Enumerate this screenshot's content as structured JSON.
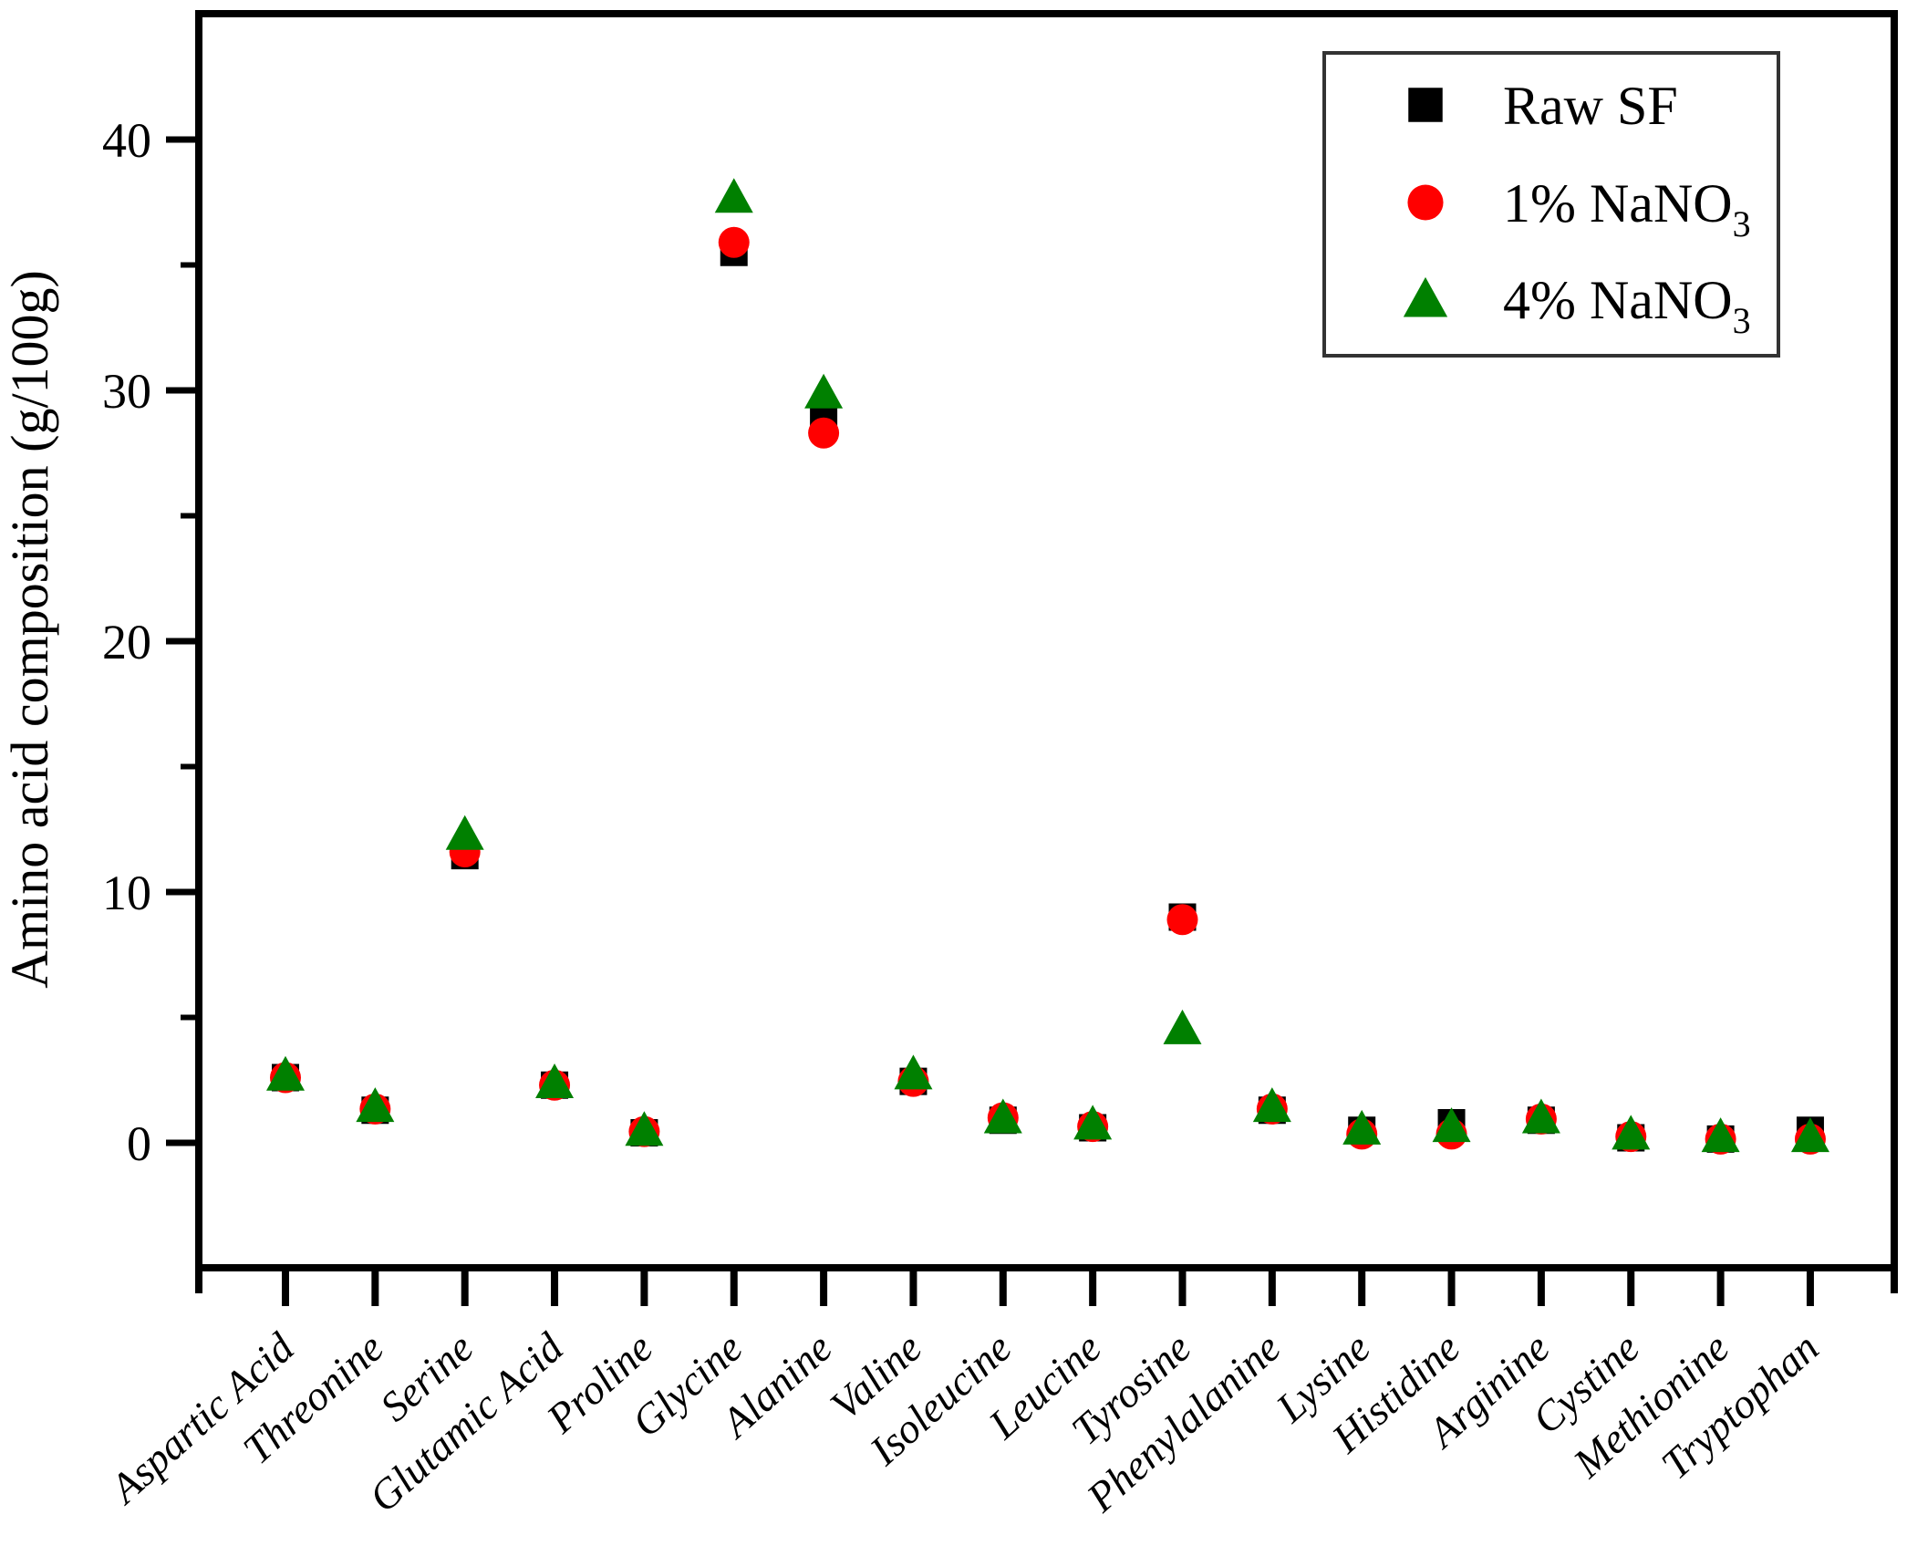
{
  "figure": {
    "background": "#ffffff",
    "frame_color": "#000000"
  },
  "chart_data": {
    "type": "scatter",
    "title": "",
    "xlabel": "",
    "ylabel": "Amino acid composition (g/100g)",
    "ylim": [
      -5,
      45
    ],
    "yticks_major": [
      0,
      10,
      20,
      30,
      40
    ],
    "yticks_minor": [
      5,
      15,
      25,
      35
    ],
    "grid": false,
    "legend_position": "top-right",
    "categories": [
      "Aspartic Acid",
      "Threonine",
      "Serine",
      "Glutamic Acid",
      "Proline",
      "Glycine",
      "Alanine",
      "Valine",
      "Isoleucine",
      "Leucine",
      "Tyrosine",
      "Phenylalanine",
      "Lysine",
      "Histidine",
      "Arginine",
      "Cystine",
      "Methionine",
      "Tryptophan"
    ],
    "series": [
      {
        "name": "Raw SF",
        "label_base": "Raw SF",
        "label_sub": "",
        "marker": "square",
        "color": "#000000",
        "values": [
          2.6,
          1.3,
          11.45,
          2.3,
          0.4,
          35.5,
          28.9,
          2.45,
          0.9,
          0.6,
          9.0,
          1.3,
          0.5,
          0.8,
          0.9,
          0.2,
          0.15,
          0.5
        ]
      },
      {
        "name": "1% NaNO3",
        "label_base": "1% NaNO",
        "label_sub": "3",
        "marker": "circle",
        "color": "#ff0000",
        "values": [
          2.6,
          1.35,
          11.6,
          2.3,
          0.45,
          35.9,
          28.3,
          2.45,
          1.0,
          0.65,
          8.9,
          1.35,
          0.35,
          0.35,
          0.95,
          0.25,
          0.15,
          0.15
        ]
      },
      {
        "name": "4% NaNO3",
        "label_base": "4% NaNO",
        "label_sub": "3",
        "marker": "triangle",
        "color": "#008000",
        "values": [
          2.7,
          1.45,
          12.3,
          2.4,
          0.5,
          37.7,
          29.9,
          2.75,
          1.0,
          0.75,
          4.55,
          1.45,
          0.55,
          0.65,
          1.0,
          0.35,
          0.25,
          0.25
        ]
      }
    ]
  }
}
